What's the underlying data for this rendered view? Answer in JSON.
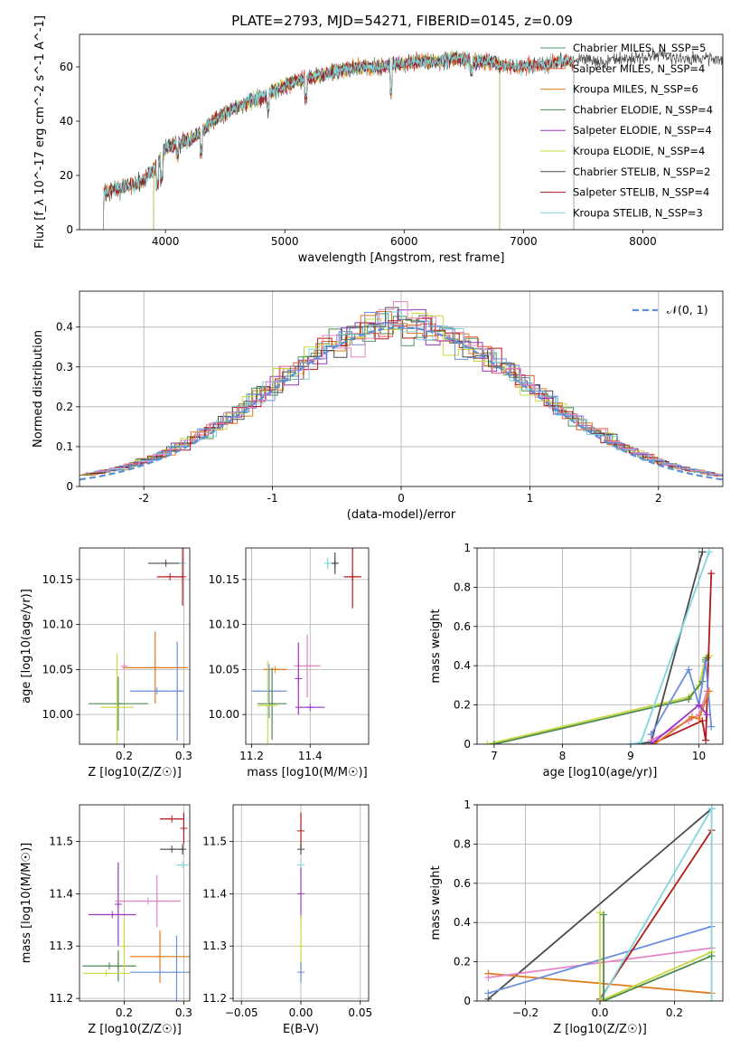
{
  "title": "PLATE=2793, MJD=54271, FIBERID=0145, z=0.09",
  "chart_data": [
    {
      "id": "spectrum",
      "type": "line",
      "xlabel": "wavelength [Angstrom, rest frame]",
      "ylabel": "Flux [f_λ 10^-17 erg cm^-2 s^-1 A^-1]",
      "xlim": [
        3280,
        8670
      ],
      "ylim": [
        0,
        72
      ],
      "xticks": [
        4000,
        5000,
        6000,
        7000,
        8000
      ],
      "yticks": [
        0,
        20,
        40,
        60
      ],
      "grid": false,
      "legend_position": "top-right",
      "continuum": [
        [
          3480,
          14
        ],
        [
          3600,
          15
        ],
        [
          3700,
          16
        ],
        [
          3800,
          18
        ],
        [
          3900,
          22
        ],
        [
          4000,
          30
        ],
        [
          4100,
          32
        ],
        [
          4200,
          33
        ],
        [
          4300,
          36
        ],
        [
          4400,
          40
        ],
        [
          4500,
          43
        ],
        [
          4600,
          45
        ],
        [
          4700,
          47
        ],
        [
          4800,
          49
        ],
        [
          4900,
          51
        ],
        [
          5000,
          53
        ],
        [
          5100,
          55
        ],
        [
          5200,
          56
        ],
        [
          5300,
          57
        ],
        [
          5400,
          58
        ],
        [
          5500,
          59
        ],
        [
          5600,
          60
        ],
        [
          5700,
          60
        ],
        [
          5800,
          60
        ],
        [
          5900,
          61
        ],
        [
          6000,
          61
        ],
        [
          6100,
          62
        ],
        [
          6200,
          62
        ],
        [
          6300,
          62
        ],
        [
          6400,
          63
        ],
        [
          6500,
          63
        ],
        [
          6600,
          62
        ],
        [
          6700,
          62
        ],
        [
          6800,
          61
        ],
        [
          6900,
          60
        ],
        [
          7000,
          60
        ],
        [
          7100,
          61
        ],
        [
          7200,
          61
        ],
        [
          7300,
          62
        ],
        [
          7400,
          62
        ],
        [
          7500,
          63
        ],
        [
          7600,
          62
        ],
        [
          7700,
          62
        ],
        [
          7800,
          63
        ],
        [
          7900,
          63
        ],
        [
          8000,
          63
        ],
        [
          8100,
          64
        ],
        [
          8200,
          64
        ],
        [
          8300,
          63
        ],
        [
          8400,
          63
        ],
        [
          8500,
          63
        ]
      ],
      "series": [
        {
          "name": "Chabrier MILES, N_SSP=5",
          "color": "#4c9a6e",
          "xmin": 3480,
          "xmax": 7420
        },
        {
          "name": "Salpeter MILES, N_SSP=4",
          "color": "#e8593c",
          "xmin": 3480,
          "xmax": 7420
        },
        {
          "name": "Kroupa MILES, N_SSP=6",
          "color": "#e07b1e",
          "xmin": 3480,
          "xmax": 7420
        },
        {
          "name": "Chabrier ELODIE, N_SSP=4",
          "color": "#4f8a4f",
          "xmin": 3900,
          "xmax": 6800
        },
        {
          "name": "Salpeter ELODIE, N_SSP=4",
          "color": "#9b35c4",
          "xmin": 3900,
          "xmax": 6800
        },
        {
          "name": "Kroupa ELODIE, N_SSP=4",
          "color": "#c8d93f",
          "xmin": 3900,
          "xmax": 6800
        },
        {
          "name": "Chabrier STELIB, N_SSP=2",
          "color": "#4a4a4a",
          "xmin": 3480,
          "xmax": 8670
        },
        {
          "name": "Salpeter STELIB, N_SSP=4",
          "color": "#b01a1a",
          "xmin": 3480,
          "xmax": 7420
        },
        {
          "name": "Kroupa STELIB, N_SSP=3",
          "color": "#7fd6dc",
          "xmin": 3480,
          "xmax": 7420
        }
      ]
    },
    {
      "id": "residuals",
      "type": "line",
      "xlabel": "(data-model)/error",
      "ylabel": "Normed distribution",
      "xlim": [
        -2.5,
        2.5
      ],
      "ylim": [
        0,
        0.49
      ],
      "xticks": [
        -2,
        -1,
        0,
        1,
        2
      ],
      "yticks": [
        0.0,
        0.1,
        0.2,
        0.3,
        0.4
      ],
      "grid": true,
      "legend": [
        "𝒩(0, 1)"
      ],
      "legend_position": "top-right",
      "histogram_colors": [
        "#4c9a6e",
        "#e8593c",
        "#e07b1e",
        "#4f8a4f",
        "#9b35c4",
        "#c8d93f",
        "#4a4a4a",
        "#b01a1a",
        "#7fd6dc",
        "#6a8fdc",
        "#e583c4"
      ]
    },
    {
      "id": "age-vs-z",
      "type": "scatter",
      "xlabel": "Z [log10(Z/Z☉)]",
      "ylabel": "age  [log10(age/yr)]",
      "xlim": [
        0.125,
        0.31
      ],
      "ylim": [
        9.967,
        10.185
      ],
      "xticks": [
        0.2,
        0.3
      ],
      "xtick_labels": [
        "0.2",
        "0.3"
      ],
      "yticks": [
        10.0,
        10.05,
        10.1,
        10.15
      ],
      "ytick_labels": [
        "10.00",
        "10.05",
        "10.10",
        "10.15"
      ],
      "grid": true,
      "points": [
        {
          "x": 0.27,
          "y": 10.168,
          "xe": 0.03,
          "ye": 0.0,
          "color": "#4a4a4a"
        },
        {
          "x": 0.298,
          "y": 10.168,
          "xe": 0.004,
          "ye": 0.006,
          "color": "#7fd6dc"
        },
        {
          "x": 0.277,
          "y": 10.153,
          "xe": 0.022,
          "ye": 0.0,
          "color": "#b01a1a"
        },
        {
          "x": 0.298,
          "y": 10.153,
          "xe": 0.0,
          "ye": 0.032,
          "color": "#b01a1a"
        },
        {
          "x": 0.252,
          "y": 10.052,
          "xe": 0.055,
          "ye": 0.04,
          "color": "#e07b1e"
        },
        {
          "x": 0.255,
          "y": 10.026,
          "xe": 0.045,
          "ye": 0.0,
          "color": "#6a8fdc"
        },
        {
          "x": 0.289,
          "y": 10.026,
          "xe": 0.0,
          "ye": 0.055,
          "color": "#6a8fdc"
        },
        {
          "x": 0.19,
          "y": 10.012,
          "xe": 0.05,
          "ye": 0.03,
          "color": "#4f8a4f"
        },
        {
          "x": 0.188,
          "y": 10.008,
          "xe": 0.028,
          "ye": 0.06,
          "color": "#c8d93f"
        },
        {
          "x": 0.2,
          "y": 10.054,
          "xe": 0.0,
          "ye": 0.0,
          "color": "#e583c4"
        }
      ]
    },
    {
      "id": "age-vs-mass",
      "type": "scatter",
      "xlabel": "mass [log10(M/M☉)]",
      "ylabel": "",
      "xlim": [
        11.18,
        11.6
      ],
      "ylim": [
        9.967,
        10.185
      ],
      "xticks": [
        11.2,
        11.4
      ],
      "xtick_labels": [
        "11.2",
        "11.4"
      ],
      "yticks": [
        10.0,
        10.05,
        10.1,
        10.15
      ],
      "ytick_labels": [
        "10.00",
        "10.05",
        "10.10",
        "10.15"
      ],
      "grid": true,
      "points": [
        {
          "x": 11.46,
          "y": 10.168,
          "xe": 0.005,
          "ye": 0.006,
          "color": "#7fd6dc"
        },
        {
          "x": 11.485,
          "y": 10.168,
          "xe": 0.01,
          "ye": 0.012,
          "color": "#4a4a4a"
        },
        {
          "x": 11.545,
          "y": 10.153,
          "xe": 0.03,
          "ye": 0.035,
          "color": "#b01a1a"
        },
        {
          "x": 11.39,
          "y": 10.054,
          "xe": 0.045,
          "ye": 0.035,
          "color": "#e583c4"
        },
        {
          "x": 11.36,
          "y": 10.04,
          "xe": 0.0,
          "ye": 0.04,
          "color": "#9b35c4"
        },
        {
          "x": 11.4,
          "y": 10.008,
          "xe": 0.05,
          "ye": 0.0,
          "color": "#9b35c4"
        },
        {
          "x": 11.28,
          "y": 10.05,
          "xe": 0.04,
          "ye": 0.0,
          "color": "#e07b1e"
        },
        {
          "x": 11.26,
          "y": 10.026,
          "xe": 0.06,
          "ye": 0.03,
          "color": "#6a8fdc"
        },
        {
          "x": 11.27,
          "y": 10.012,
          "xe": 0.05,
          "ye": 0.04,
          "color": "#4f8a4f"
        },
        {
          "x": 11.255,
          "y": 10.01,
          "xe": 0.035,
          "ye": 0.05,
          "color": "#c8d93f"
        }
      ]
    },
    {
      "id": "weight-vs-age",
      "type": "line",
      "xlabel": "age  [log10(age/yr)]",
      "ylabel": "mass weight",
      "xlim": [
        6.75,
        10.35
      ],
      "ylim": [
        0,
        1.0
      ],
      "xticks": [
        7,
        8,
        9,
        10
      ],
      "xtick_labels": [
        "7",
        "8",
        "9",
        "10"
      ],
      "yticks": [
        0.0,
        0.2,
        0.4,
        0.6,
        0.8,
        1.0
      ],
      "grid": true,
      "series": [
        {
          "color": "#c8d93f",
          "points": [
            [
              6.9,
              0.0
            ],
            [
              9.85,
              0.24
            ],
            [
              10.0,
              0.3
            ],
            [
              10.1,
              0.44
            ],
            [
              10.15,
              0.45
            ]
          ]
        },
        {
          "color": "#4f8a4f",
          "points": [
            [
              7.0,
              0.0
            ],
            [
              9.85,
              0.23
            ],
            [
              10.05,
              0.32
            ],
            [
              10.1,
              0.43
            ],
            [
              10.12,
              0.44
            ]
          ]
        },
        {
          "color": "#4a4a4a",
          "points": [
            [
              9.0,
              0.0
            ],
            [
              9.3,
              0.01
            ],
            [
              10.05,
              0.98
            ]
          ]
        },
        {
          "color": "#7fd6dc",
          "points": [
            [
              9.0,
              0.0
            ],
            [
              9.15,
              0.01
            ],
            [
              10.15,
              0.98
            ]
          ]
        },
        {
          "color": "#b01a1a",
          "points": [
            [
              9.3,
              0.0
            ],
            [
              10.05,
              0.12
            ],
            [
              10.1,
              0.02
            ],
            [
              10.18,
              0.87
            ]
          ]
        },
        {
          "color": "#6a8fdc",
          "points": [
            [
              9.3,
              0.05
            ],
            [
              9.85,
              0.38
            ],
            [
              10.0,
              0.2
            ],
            [
              10.1,
              0.42
            ],
            [
              10.18,
              0.09
            ]
          ]
        },
        {
          "color": "#e583c4",
          "points": [
            [
              9.3,
              0.02
            ],
            [
              9.85,
              0.12
            ],
            [
              10.0,
              0.15
            ],
            [
              10.12,
              0.27
            ]
          ]
        },
        {
          "color": "#e07b1e",
          "points": [
            [
              9.35,
              0.0
            ],
            [
              9.9,
              0.14
            ],
            [
              10.0,
              0.13
            ],
            [
              10.15,
              0.27
            ]
          ]
        },
        {
          "color": "#9b35c4",
          "points": [
            [
              9.3,
              0.0
            ],
            [
              10.0,
              0.2
            ],
            [
              10.12,
              0.15
            ]
          ]
        }
      ]
    },
    {
      "id": "mass-vs-z",
      "type": "scatter",
      "xlabel": "Z [log10(Z/Z☉)]",
      "ylabel": "mass [log10(M/M☉)]",
      "xlim": [
        0.125,
        0.31
      ],
      "ylim": [
        11.195,
        11.57
      ],
      "xticks": [
        0.2,
        0.3
      ],
      "xtick_labels": [
        "0.2",
        "0.3"
      ],
      "yticks": [
        11.2,
        11.3,
        11.4,
        11.5
      ],
      "ytick_labels": [
        "11.2",
        "11.3",
        "11.4",
        "11.5"
      ],
      "grid": true,
      "points": [
        {
          "x": 0.28,
          "y": 11.543,
          "xe": 0.02,
          "ye": 0.0,
          "color": "#b01a1a"
        },
        {
          "x": 0.3,
          "y": 11.525,
          "xe": 0.0,
          "ye": 0.03,
          "color": "#b01a1a"
        },
        {
          "x": 0.28,
          "y": 11.485,
          "xe": 0.02,
          "ye": 0.0,
          "color": "#4a4a4a"
        },
        {
          "x": 0.298,
          "y": 11.485,
          "xe": 0.0,
          "ye": 0.01,
          "color": "#4a4a4a"
        },
        {
          "x": 0.298,
          "y": 11.455,
          "xe": 0.01,
          "ye": 0.0,
          "color": "#7fd6dc"
        },
        {
          "x": 0.18,
          "y": 11.36,
          "xe": 0.04,
          "ye": 0.0,
          "color": "#9b35c4"
        },
        {
          "x": 0.19,
          "y": 11.38,
          "xe": 0.0,
          "ye": 0.08,
          "color": "#9b35c4"
        },
        {
          "x": 0.24,
          "y": 11.386,
          "xe": 0.055,
          "ye": 0.0,
          "color": "#e583c4"
        },
        {
          "x": 0.255,
          "y": 11.386,
          "xe": 0.0,
          "ye": 0.05,
          "color": "#e583c4"
        },
        {
          "x": 0.26,
          "y": 11.28,
          "xe": 0.05,
          "ye": 0.05,
          "color": "#e07b1e"
        },
        {
          "x": 0.26,
          "y": 11.25,
          "xe": 0.05,
          "ye": 0.0,
          "color": "#6a8fdc"
        },
        {
          "x": 0.288,
          "y": 11.25,
          "xe": 0.0,
          "ye": 0.07,
          "color": "#6a8fdc"
        },
        {
          "x": 0.175,
          "y": 11.262,
          "xe": 0.045,
          "ye": 0.0,
          "color": "#4f8a4f"
        },
        {
          "x": 0.19,
          "y": 11.262,
          "xe": 0.0,
          "ye": 0.03,
          "color": "#4f8a4f"
        },
        {
          "x": 0.17,
          "y": 11.248,
          "xe": 0.04,
          "ye": 0.0,
          "color": "#c8d93f"
        },
        {
          "x": 0.2,
          "y": 11.3,
          "xe": 0.0,
          "ye": 0.05,
          "color": "#c8d93f"
        }
      ]
    },
    {
      "id": "mass-vs-ebv",
      "type": "scatter",
      "xlabel": "E(B-V)",
      "ylabel": "",
      "xlim": [
        -0.057,
        0.057
      ],
      "ylim": [
        11.195,
        11.57
      ],
      "xticks": [
        -0.05,
        0.0,
        0.05
      ],
      "xtick_labels": [
        "−0.05",
        "0.00",
        "0.05"
      ],
      "yticks": [
        11.2,
        11.3,
        11.4,
        11.5
      ],
      "ytick_labels": [
        "11.2",
        "11.3",
        "11.4",
        "11.5"
      ],
      "grid": true,
      "points": [
        {
          "x": 0.0,
          "y": 11.52,
          "xe": 0.0,
          "ye": 0.035,
          "color": "#b01a1a"
        },
        {
          "x": 0.0,
          "y": 11.485,
          "xe": 0.0,
          "ye": 0.01,
          "color": "#4a4a4a"
        },
        {
          "x": 0.0,
          "y": 11.455,
          "xe": 0.0,
          "ye": 0.01,
          "color": "#7fd6dc"
        },
        {
          "x": 0.0,
          "y": 11.4,
          "xe": 0.0,
          "ye": 0.05,
          "color": "#9b35c4"
        },
        {
          "x": 0.0,
          "y": 11.3,
          "xe": 0.0,
          "ye": 0.06,
          "color": "#c8d93f"
        },
        {
          "x": 0.0,
          "y": 11.25,
          "xe": 0.0,
          "ye": 0.02,
          "color": "#6a8fdc"
        }
      ]
    },
    {
      "id": "weight-vs-z",
      "type": "line",
      "xlabel": "Z [log10(Z/Z☉)]",
      "ylabel": "mass weight",
      "xlim": [
        -0.33,
        0.33
      ],
      "ylim": [
        0,
        1.0
      ],
      "xticks": [
        -0.2,
        0.0,
        0.2
      ],
      "xtick_labels": [
        "−0.2",
        "0.0",
        "0.2"
      ],
      "yticks": [
        0.0,
        0.2,
        0.4,
        0.6,
        0.8,
        1.0
      ],
      "grid": true,
      "series": [
        {
          "color": "#4a4a4a",
          "points": [
            [
              -0.3,
              0.01
            ],
            [
              0.3,
              0.98
            ]
          ]
        },
        {
          "color": "#e07b1e",
          "points": [
            [
              -0.3,
              0.14
            ],
            [
              0.3,
              0.04
            ]
          ]
        },
        {
          "color": "#e583c4",
          "points": [
            [
              -0.3,
              0.12
            ],
            [
              0.3,
              0.27
            ]
          ]
        },
        {
          "color": "#6a8fdc",
          "points": [
            [
              -0.3,
              0.04
            ],
            [
              0.3,
              0.38
            ]
          ]
        },
        {
          "color": "#b01a1a",
          "points": [
            [
              0.0,
              0.01
            ],
            [
              0.3,
              0.87
            ]
          ]
        },
        {
          "color": "#7fd6dc",
          "points": [
            [
              0.0,
              0.0
            ],
            [
              0.3,
              0.98
            ],
            [
              0.3,
              0.0
            ]
          ]
        },
        {
          "color": "#c8d93f",
          "points": [
            [
              0.0,
              0.45
            ],
            [
              0.0,
              0.0
            ],
            [
              0.3,
              0.25
            ]
          ]
        },
        {
          "color": "#4f8a4f",
          "points": [
            [
              0.01,
              0.44
            ],
            [
              0.01,
              0.0
            ],
            [
              0.3,
              0.23
            ]
          ]
        }
      ]
    }
  ]
}
